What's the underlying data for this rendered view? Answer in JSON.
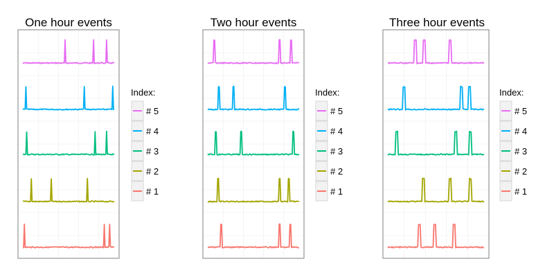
{
  "chart_data": [
    {
      "type": "line",
      "title": "One hour events",
      "xlabel": "",
      "ylabel": "",
      "grid": true,
      "legend": {
        "title": "Index:",
        "position": "right"
      },
      "series": [
        {
          "name": "# 5",
          "color": "#E76BF3",
          "spikes": [
            {
              "x": 0.46,
              "width": 1
            },
            {
              "x": 0.77,
              "width": 1
            },
            {
              "x": 0.92,
              "width": 1
            }
          ]
        },
        {
          "name": "# 4",
          "color": "#00B0F6",
          "spikes": [
            {
              "x": 0.03,
              "width": 1
            },
            {
              "x": 0.67,
              "width": 1
            },
            {
              "x": 0.98,
              "width": 1
            }
          ]
        },
        {
          "name": "# 3",
          "color": "#00BF7D",
          "spikes": [
            {
              "x": 0.04,
              "width": 1
            },
            {
              "x": 0.79,
              "width": 1
            },
            {
              "x": 0.92,
              "width": 1
            }
          ]
        },
        {
          "name": "# 2",
          "color": "#A3A500",
          "spikes": [
            {
              "x": 0.09,
              "width": 1
            },
            {
              "x": 0.31,
              "width": 1
            },
            {
              "x": 0.71,
              "width": 1
            }
          ]
        },
        {
          "name": "# 1",
          "color": "#F8766D",
          "spikes": [
            {
              "x": 0.02,
              "width": 1
            },
            {
              "x": 0.89,
              "width": 1
            },
            {
              "x": 0.95,
              "width": 1
            }
          ]
        }
      ]
    },
    {
      "type": "line",
      "title": "Two hour events",
      "xlabel": "",
      "ylabel": "",
      "grid": true,
      "legend": {
        "title": "Index:",
        "position": "right"
      },
      "series": [
        {
          "name": "# 5",
          "color": "#E76BF3",
          "spikes": [
            {
              "x": 0.07,
              "width": 2
            },
            {
              "x": 0.78,
              "width": 2
            },
            {
              "x": 0.91,
              "width": 2
            }
          ]
        },
        {
          "name": "# 4",
          "color": "#00B0F6",
          "spikes": [
            {
              "x": 0.12,
              "width": 2
            },
            {
              "x": 0.28,
              "width": 2
            },
            {
              "x": 0.84,
              "width": 2
            }
          ]
        },
        {
          "name": "# 3",
          "color": "#00BF7D",
          "spikes": [
            {
              "x": 0.08,
              "width": 2
            },
            {
              "x": 0.36,
              "width": 2
            },
            {
              "x": 0.93,
              "width": 2
            }
          ]
        },
        {
          "name": "# 2",
          "color": "#A3A500",
          "spikes": [
            {
              "x": 0.11,
              "width": 2
            },
            {
              "x": 0.78,
              "width": 2
            },
            {
              "x": 0.88,
              "width": 2
            }
          ]
        },
        {
          "name": "# 1",
          "color": "#F8766D",
          "spikes": [
            {
              "x": 0.14,
              "width": 2
            },
            {
              "x": 0.78,
              "width": 2
            },
            {
              "x": 0.9,
              "width": 2
            }
          ]
        }
      ]
    },
    {
      "type": "line",
      "title": "Three hour events",
      "xlabel": "",
      "ylabel": "",
      "grid": true,
      "legend": {
        "title": "Index:",
        "position": "right"
      },
      "series": [
        {
          "name": "# 5",
          "color": "#E76BF3",
          "spikes": [
            {
              "x": 0.28,
              "width": 3
            },
            {
              "x": 0.37,
              "width": 3
            },
            {
              "x": 0.64,
              "width": 3
            }
          ]
        },
        {
          "name": "# 4",
          "color": "#00B0F6",
          "spikes": [
            {
              "x": 0.16,
              "width": 3
            },
            {
              "x": 0.76,
              "width": 3
            },
            {
              "x": 0.84,
              "width": 3
            }
          ]
        },
        {
          "name": "# 3",
          "color": "#00BF7D",
          "spikes": [
            {
              "x": 0.08,
              "width": 3
            },
            {
              "x": 0.7,
              "width": 3
            },
            {
              "x": 0.85,
              "width": 3
            }
          ]
        },
        {
          "name": "# 2",
          "color": "#A3A500",
          "spikes": [
            {
              "x": 0.36,
              "width": 3
            },
            {
              "x": 0.64,
              "width": 3
            },
            {
              "x": 0.85,
              "width": 3
            }
          ]
        },
        {
          "name": "# 1",
          "color": "#F8766D",
          "spikes": [
            {
              "x": 0.32,
              "width": 3
            },
            {
              "x": 0.48,
              "width": 3
            },
            {
              "x": 0.68,
              "width": 3
            }
          ]
        }
      ]
    }
  ]
}
